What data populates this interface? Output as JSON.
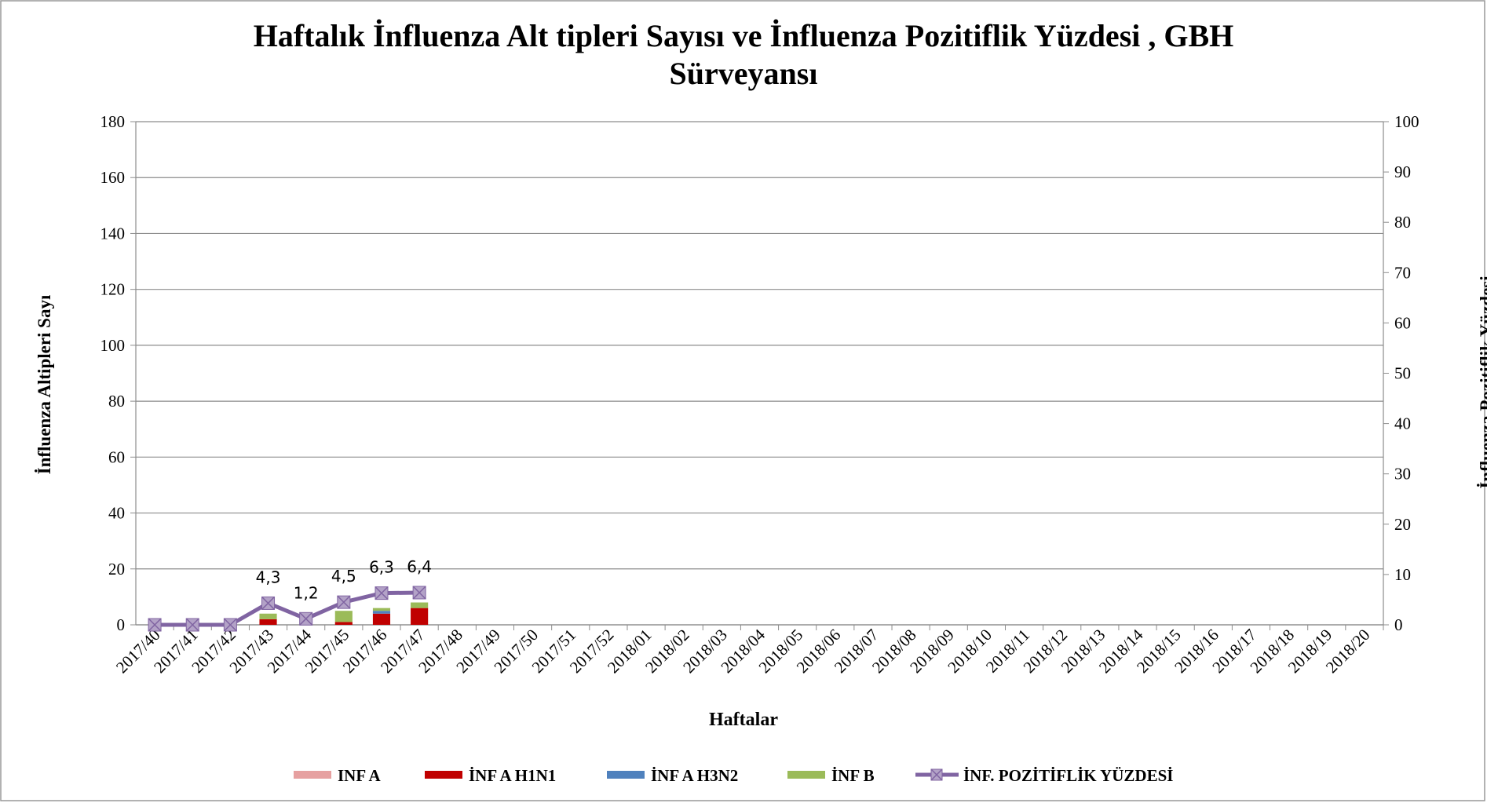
{
  "chart_data": {
    "type": "bar-line",
    "title": "Haftalık İnfluenza Alt tipleri Sayısı ve İnfluenza Pozitiflik Yüzdesi , GBH Sürveyansı",
    "x_label": "Haftalar",
    "y_label": "İnfluenza Altipleri Sayı",
    "y2_label": "İnfluenza Pozitiflik Yüzdesi",
    "categories": [
      "2017/40",
      "2017/41",
      "2017/42",
      "2017/43",
      "2017/44",
      "2017/45",
      "2017/46",
      "2017/47",
      "2017/48",
      "2017/49",
      "2017/50",
      "2017/51",
      "2017/52",
      "2018/01",
      "2018/02",
      "2018/03",
      "2018/04",
      "2018/05",
      "2018/06",
      "2018/07",
      "2018/08",
      "2018/09",
      "2018/10",
      "2018/11",
      "2018/12",
      "2018/13",
      "2018/14",
      "2018/15",
      "2018/16",
      "2018/17",
      "2018/18",
      "2018/19",
      "2018/20"
    ],
    "ylim": [
      0,
      180
    ],
    "yticks": [
      0,
      20,
      40,
      60,
      80,
      100,
      120,
      140,
      160,
      180
    ],
    "y2lim": [
      0,
      100
    ],
    "y2ticks": [
      0,
      10,
      20,
      30,
      40,
      50,
      60,
      70,
      80,
      90,
      100
    ],
    "grid": true,
    "legend": "bottom",
    "series": [
      {
        "name": "INF A",
        "type": "bar",
        "color": "#e6a0a0",
        "values": [
          0,
          0,
          0,
          0,
          0,
          0,
          0,
          0,
          null,
          null,
          null,
          null,
          null,
          null,
          null,
          null,
          null,
          null,
          null,
          null,
          null,
          null,
          null,
          null,
          null,
          null,
          null,
          null,
          null,
          null,
          null,
          null,
          null
        ]
      },
      {
        "name": "İNF A H1N1",
        "type": "bar",
        "color": "#c00000",
        "values": [
          0,
          0,
          0,
          2,
          0,
          1,
          4,
          6,
          null,
          null,
          null,
          null,
          null,
          null,
          null,
          null,
          null,
          null,
          null,
          null,
          null,
          null,
          null,
          null,
          null,
          null,
          null,
          null,
          null,
          null,
          null,
          null,
          null
        ]
      },
      {
        "name": "İNF A H3N2",
        "type": "bar",
        "color": "#4f81bd",
        "values": [
          0,
          0,
          0,
          0,
          0,
          0,
          1,
          0,
          null,
          null,
          null,
          null,
          null,
          null,
          null,
          null,
          null,
          null,
          null,
          null,
          null,
          null,
          null,
          null,
          null,
          null,
          null,
          null,
          null,
          null,
          null,
          null,
          null
        ]
      },
      {
        "name": "İNF B",
        "type": "bar",
        "color": "#9bbb59",
        "values": [
          0,
          0,
          0,
          2,
          0,
          4,
          1,
          2,
          null,
          null,
          null,
          null,
          null,
          null,
          null,
          null,
          null,
          null,
          null,
          null,
          null,
          null,
          null,
          null,
          null,
          null,
          null,
          null,
          null,
          null,
          null,
          null,
          null
        ]
      },
      {
        "name": "İNF. POZİTİFLİK YÜZDESİ",
        "type": "line",
        "axis": "y2",
        "color": "#8064a2",
        "marker_color": "#b3a2c7",
        "values": [
          0,
          0,
          0,
          4.3,
          1.2,
          4.5,
          6.3,
          6.4,
          null,
          null,
          null,
          null,
          null,
          null,
          null,
          null,
          null,
          null,
          null,
          null,
          null,
          null,
          null,
          null,
          null,
          null,
          null,
          null,
          null,
          null,
          null,
          null,
          null
        ],
        "value_labels": [
          null,
          null,
          null,
          "4,3",
          "1,2",
          "4,5",
          "6,3",
          "6,4",
          null,
          null,
          null,
          null,
          null,
          null,
          null,
          null,
          null,
          null,
          null,
          null,
          null,
          null,
          null,
          null,
          null,
          null,
          null,
          null,
          null,
          null,
          null,
          null,
          null
        ]
      }
    ]
  }
}
